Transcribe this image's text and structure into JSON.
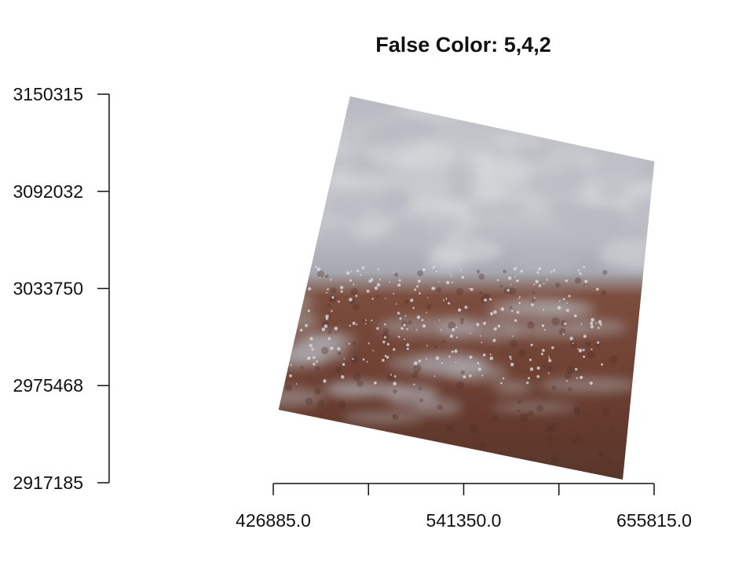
{
  "chart_data": {
    "type": "raster",
    "title": "False Color: 5,4,2",
    "xlabel": "",
    "ylabel": "",
    "x_ticks": [
      {
        "value": 426885.0,
        "label": "426885.0"
      },
      {
        "value": 484117.5,
        "label": ""
      },
      {
        "value": 541350.0,
        "label": "541350.0"
      },
      {
        "value": 598582.5,
        "label": ""
      },
      {
        "value": 655815.0,
        "label": "655815.0"
      }
    ],
    "y_ticks": [
      {
        "value": 3150315,
        "label": "3150315"
      },
      {
        "value": 3092032,
        "label": "3092032"
      },
      {
        "value": 3033750,
        "label": "3033750"
      },
      {
        "value": 2975468,
        "label": "2975468"
      },
      {
        "value": 2917185,
        "label": "2917185"
      }
    ],
    "xlim": [
      426885.0,
      655815.0
    ],
    "ylim": [
      2917185,
      3150315
    ],
    "image_footprint": [
      {
        "x": 473000,
        "y": 3149000
      },
      {
        "x": 656000,
        "y": 3110000
      },
      {
        "x": 637000,
        "y": 2919000
      },
      {
        "x": 430000,
        "y": 2961000
      }
    ],
    "bands": "5,4,2",
    "colors": {
      "cloud": "#b9bcc6",
      "cloud_light": "#dfe1e6",
      "land": "#6e3a28",
      "land_dark": "#4a2a22",
      "axis": "#111111"
    }
  }
}
